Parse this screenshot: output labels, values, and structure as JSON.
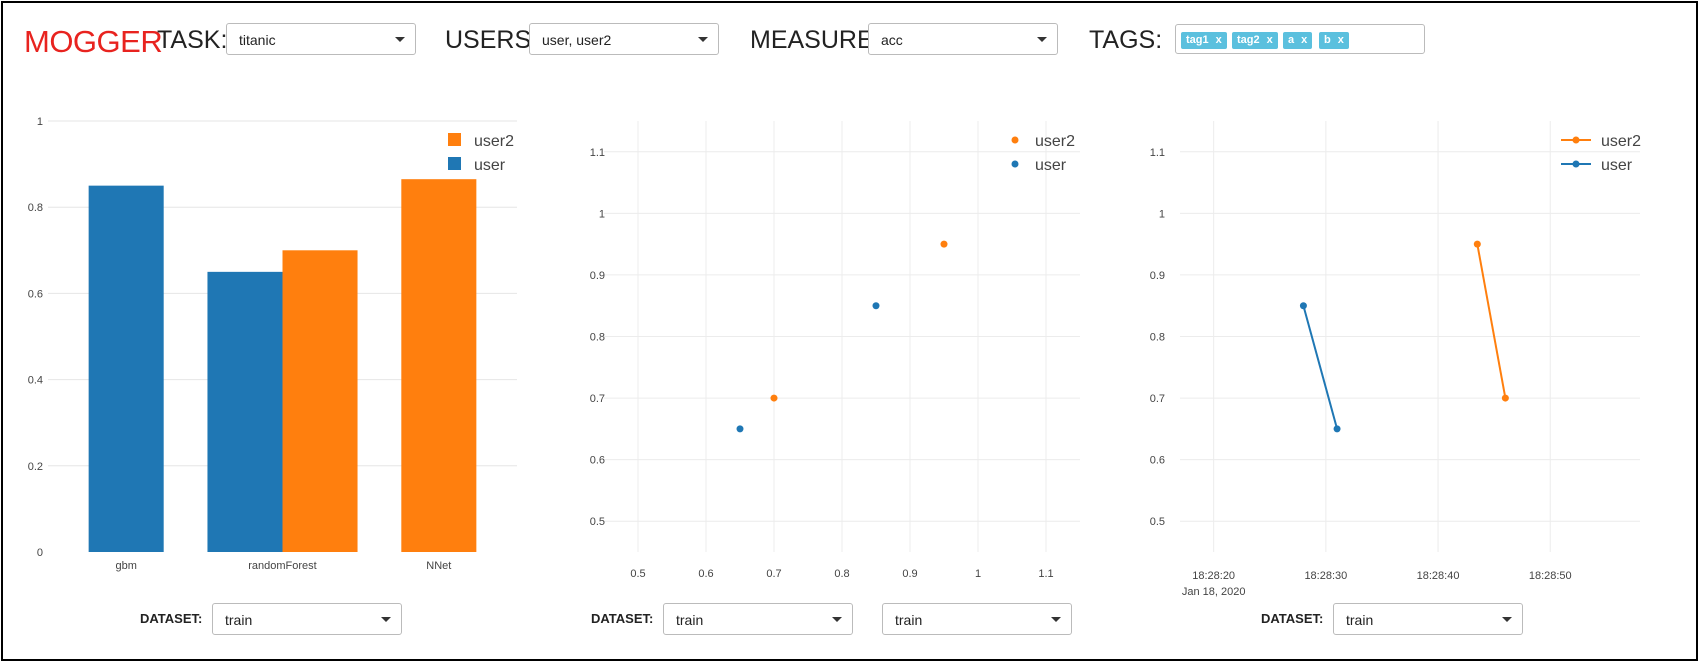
{
  "header": {
    "logo": "MOGGER",
    "task_label": "TASK:",
    "task_value": "titanic",
    "users_label": "USERS:",
    "users_value": "user, user2",
    "measure_label": "MEASURE:",
    "measure_value": "acc",
    "tags_label": "TAGS:",
    "tags": [
      {
        "label": "tag1",
        "remove": "x"
      },
      {
        "label": "tag2",
        "remove": "x"
      },
      {
        "label": "a",
        "remove": "x"
      },
      {
        "label": "b",
        "remove": "x"
      }
    ]
  },
  "panels": {
    "bar": {
      "dataset_label": "DATASET:",
      "dataset_value": "train"
    },
    "scatter": {
      "dataset_label": "DATASET:",
      "dataset_value": "train",
      "dataset_value_2": "train"
    },
    "line": {
      "dataset_label": "DATASET:",
      "dataset_value": "train"
    }
  },
  "colors": {
    "user": "#1f77b4",
    "user2": "#ff7f0e",
    "logo": "#e8231f",
    "tag": "#5bc0de"
  },
  "chart_data": [
    {
      "type": "bar",
      "categories": [
        "gbm",
        "randomForest",
        "NNet"
      ],
      "series": [
        {
          "name": "user",
          "values": [
            0.85,
            0.65,
            null
          ]
        },
        {
          "name": "user2",
          "values": [
            null,
            0.7,
            0.865
          ]
        }
      ],
      "ylim": [
        0,
        1
      ],
      "yticks": [
        "0",
        "0.2",
        "0.4",
        "0.6",
        "0.8",
        "1"
      ],
      "legend": [
        "user2",
        "user"
      ],
      "legend_position": "top-right",
      "grid": true
    },
    {
      "type": "scatter",
      "series": [
        {
          "name": "user",
          "points": [
            [
              0.65,
              0.65
            ],
            [
              0.85,
              0.85
            ]
          ]
        },
        {
          "name": "user2",
          "points": [
            [
              0.7,
              0.7
            ],
            [
              0.95,
              0.95
            ]
          ]
        }
      ],
      "xlim": [
        0.45,
        1.15
      ],
      "ylim": [
        0.45,
        1.15
      ],
      "xticks": [
        "0.5",
        "0.6",
        "0.7",
        "0.8",
        "0.9",
        "1",
        "1.1"
      ],
      "yticks": [
        "0.5",
        "0.6",
        "0.7",
        "0.8",
        "0.9",
        "1",
        "1.1"
      ],
      "legend": [
        "user2",
        "user"
      ],
      "legend_position": "top-right",
      "grid": true
    },
    {
      "type": "line",
      "series": [
        {
          "name": "user",
          "points": [
            [
              "18:28:28",
              0.85
            ],
            [
              "18:28:31",
              0.65
            ]
          ]
        },
        {
          "name": "user2",
          "points": [
            [
              "18:28:43.5",
              0.95
            ],
            [
              "18:28:46",
              0.7
            ]
          ]
        }
      ],
      "xlim": [
        "18:28:17",
        "18:28:58"
      ],
      "ylim": [
        0.45,
        1.15
      ],
      "xticks": [
        "18:28:20",
        "18:28:30",
        "18:28:40",
        "18:28:50"
      ],
      "xtick_sub": "Jan 18, 2020",
      "yticks": [
        "0.5",
        "0.6",
        "0.7",
        "0.8",
        "0.9",
        "1",
        "1.1"
      ],
      "legend": [
        "user2",
        "user"
      ],
      "legend_position": "top-right",
      "grid": true
    }
  ]
}
